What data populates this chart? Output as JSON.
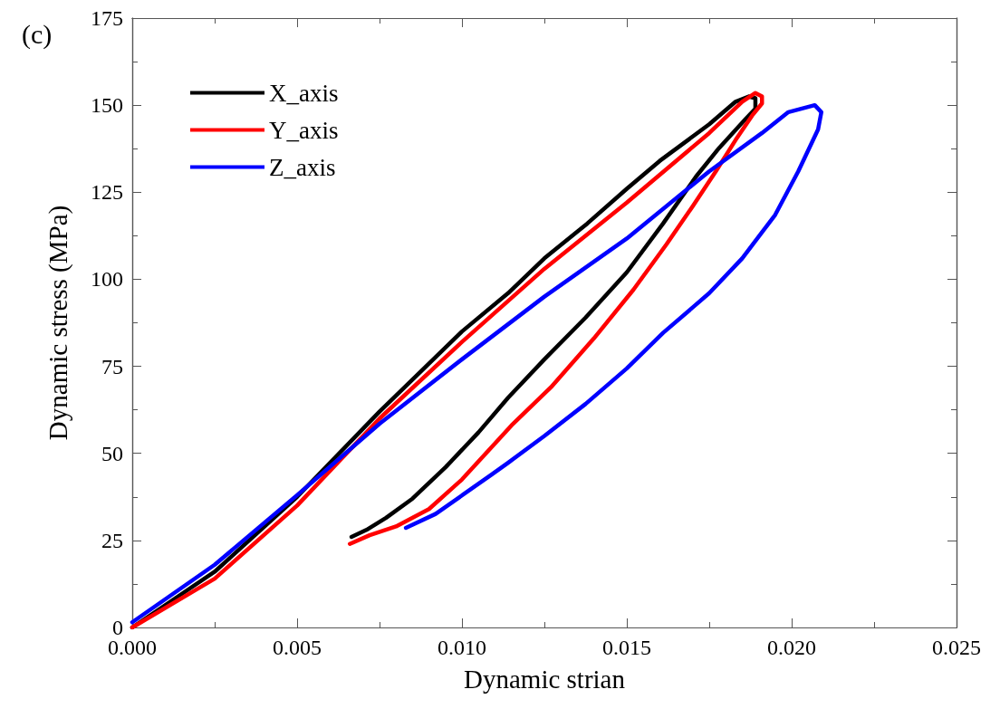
{
  "chart_data": {
    "type": "line",
    "xlabel": "Dynamic strian",
    "ylabel": "Dynamic stress (MPa)",
    "annotations": [
      "(c)"
    ],
    "xlim": [
      0,
      0.025
    ],
    "ylim": [
      0,
      175
    ],
    "xticks": [
      {
        "value": 0,
        "label": "0.000"
      },
      {
        "value": 0.005,
        "label": "0.005"
      },
      {
        "value": 0.01,
        "label": "0.010"
      },
      {
        "value": 0.015,
        "label": "0.015"
      },
      {
        "value": 0.02,
        "label": "0.020"
      },
      {
        "value": 0.025,
        "label": "0.025"
      }
    ],
    "yticks": [
      0,
      25,
      50,
      75,
      100,
      125,
      150,
      175
    ],
    "grid": false,
    "legend": "top left",
    "marker": "none",
    "line_style": "solid",
    "series": [
      {
        "name": "X_axis",
        "color": "#000000",
        "x": [
          0,
          0.0025,
          0.005,
          0.0075,
          0.01,
          0.0114,
          0.0125,
          0.0138,
          0.015,
          0.016,
          0.0175,
          0.0183,
          0.0187,
          0.0189,
          0.0189,
          0.0186,
          0.0178,
          0.0171,
          0.0161,
          0.015,
          0.01375,
          0.0125,
          0.0114,
          0.0105,
          0.0095,
          0.0085,
          0.0077,
          0.0071,
          0.00665
        ],
        "values": [
          0,
          16,
          37.5,
          62,
          85,
          96,
          106,
          116,
          126,
          134,
          144.5,
          151,
          152.5,
          152,
          149,
          146,
          137.7,
          129.5,
          116,
          102,
          89,
          77,
          66,
          56,
          46,
          37,
          31.5,
          28,
          26
        ]
      },
      {
        "name": "Y_axis",
        "color": "#ff0000",
        "x": [
          0,
          0.0025,
          0.005,
          0.0075,
          0.01,
          0.0125,
          0.015,
          0.0175,
          0.0185,
          0.0189,
          0.0191,
          0.0191,
          0.0188,
          0.0183,
          0.0177,
          0.017,
          0.0162,
          0.0152,
          0.014,
          0.0127,
          0.0115,
          0.01,
          0.009,
          0.008,
          0.0072,
          0.0066
        ],
        "values": [
          0,
          14,
          35,
          60,
          82,
          103,
          122,
          142,
          151,
          153.5,
          152.5,
          150.5,
          147,
          140,
          131,
          121,
          110,
          97,
          83,
          69,
          58,
          42.5,
          34,
          29,
          26.5,
          24
        ]
      },
      {
        "name": "Z_axis",
        "color": "#0000ff",
        "x": [
          0,
          0.0025,
          0.005,
          0.0075,
          0.01,
          0.0125,
          0.015,
          0.0175,
          0.0191,
          0.0199,
          0.0207,
          0.0209,
          0.0208,
          0.0202,
          0.0195,
          0.0185,
          0.0175,
          0.0161,
          0.015,
          0.01375,
          0.0125,
          0.0114,
          0.0109,
          0.0092,
          0.0083
        ],
        "values": [
          1.5,
          18,
          38,
          58.5,
          77,
          95,
          111.7,
          131,
          142,
          148,
          150,
          148,
          143,
          131,
          118.5,
          106,
          96,
          84.6,
          74.4,
          64.2,
          55,
          47.3,
          43.9,
          32.6,
          28.6
        ]
      }
    ]
  }
}
